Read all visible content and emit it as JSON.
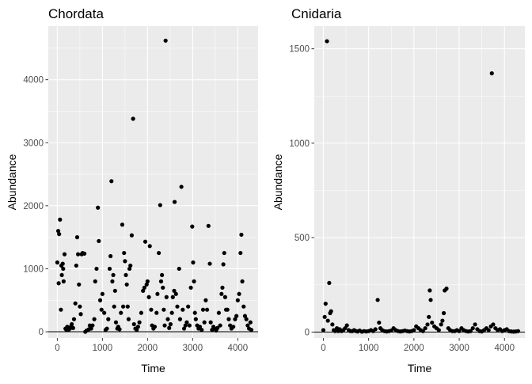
{
  "chart_data": [
    {
      "type": "scatter",
      "title": "Chordata",
      "xlabel": "Time",
      "ylabel": "Abundance",
      "xlim": [
        -200,
        4450
      ],
      "ylim": [
        -100,
        4850
      ],
      "xticks": [
        0,
        1000,
        2000,
        3000,
        4000
      ],
      "yticks": [
        0,
        1000,
        2000,
        3000,
        4000
      ],
      "xtick_labels": [
        "0",
        "1000",
        "2000",
        "3000",
        "4000"
      ],
      "ytick_labels": [
        "0",
        "1000",
        "2000",
        "3000",
        "4000"
      ],
      "hline": 0,
      "grid": true,
      "colors": {
        "panel": "#ebebeb",
        "grid": "#ffffff",
        "point": "#000000"
      },
      "points": [
        [
          0,
          1100
        ],
        [
          20,
          1600
        ],
        [
          30,
          770
        ],
        [
          40,
          1550
        ],
        [
          60,
          1780
        ],
        [
          80,
          350
        ],
        [
          90,
          1050
        ],
        [
          100,
          900
        ],
        [
          120,
          1080
        ],
        [
          130,
          1000
        ],
        [
          140,
          800
        ],
        [
          160,
          1230
        ],
        [
          180,
          50
        ],
        [
          200,
          30
        ],
        [
          220,
          80
        ],
        [
          250,
          30
        ],
        [
          280,
          50
        ],
        [
          300,
          80
        ],
        [
          320,
          120
        ],
        [
          350,
          60
        ],
        [
          370,
          200
        ],
        [
          400,
          450
        ],
        [
          420,
          1050
        ],
        [
          440,
          1500
        ],
        [
          460,
          1230
        ],
        [
          480,
          750
        ],
        [
          500,
          400
        ],
        [
          520,
          280
        ],
        [
          540,
          1230
        ],
        [
          560,
          1250
        ],
        [
          600,
          1240
        ],
        [
          620,
          0
        ],
        [
          650,
          20
        ],
        [
          700,
          40
        ],
        [
          720,
          100
        ],
        [
          750,
          50
        ],
        [
          780,
          100
        ],
        [
          820,
          200
        ],
        [
          840,
          800
        ],
        [
          870,
          1000
        ],
        [
          900,
          1970
        ],
        [
          920,
          1440
        ],
        [
          950,
          500
        ],
        [
          980,
          350
        ],
        [
          1000,
          600
        ],
        [
          1040,
          300
        ],
        [
          1070,
          30
        ],
        [
          1100,
          50
        ],
        [
          1130,
          200
        ],
        [
          1160,
          1000
        ],
        [
          1180,
          1200
        ],
        [
          1200,
          2390
        ],
        [
          1220,
          800
        ],
        [
          1240,
          900
        ],
        [
          1260,
          400
        ],
        [
          1280,
          650
        ],
        [
          1300,
          150
        ],
        [
          1330,
          50
        ],
        [
          1350,
          80
        ],
        [
          1380,
          40
        ],
        [
          1410,
          300
        ],
        [
          1440,
          1700
        ],
        [
          1460,
          400
        ],
        [
          1480,
          1250
        ],
        [
          1500,
          1120
        ],
        [
          1520,
          900
        ],
        [
          1540,
          750
        ],
        [
          1560,
          400
        ],
        [
          1580,
          200
        ],
        [
          1600,
          1000
        ],
        [
          1620,
          1050
        ],
        [
          1650,
          1530
        ],
        [
          1680,
          3380
        ],
        [
          1700,
          120
        ],
        [
          1730,
          50
        ],
        [
          1760,
          30
        ],
        [
          1790,
          80
        ],
        [
          1820,
          150
        ],
        [
          1860,
          300
        ],
        [
          1900,
          650
        ],
        [
          1930,
          700
        ],
        [
          1950,
          1430
        ],
        [
          1980,
          750
        ],
        [
          2000,
          800
        ],
        [
          2030,
          550
        ],
        [
          2050,
          1360
        ],
        [
          2080,
          350
        ],
        [
          2100,
          100
        ],
        [
          2130,
          50
        ],
        [
          2160,
          80
        ],
        [
          2200,
          300
        ],
        [
          2220,
          600
        ],
        [
          2250,
          1250
        ],
        [
          2280,
          2010
        ],
        [
          2300,
          800
        ],
        [
          2320,
          900
        ],
        [
          2340,
          700
        ],
        [
          2360,
          350
        ],
        [
          2380,
          100
        ],
        [
          2400,
          4620
        ],
        [
          2420,
          550
        ],
        [
          2450,
          200
        ],
        [
          2480,
          60
        ],
        [
          2510,
          120
        ],
        [
          2540,
          300
        ],
        [
          2560,
          550
        ],
        [
          2590,
          650
        ],
        [
          2600,
          2060
        ],
        [
          2630,
          600
        ],
        [
          2660,
          400
        ],
        [
          2700,
          1000
        ],
        [
          2720,
          200
        ],
        [
          2750,
          2300
        ],
        [
          2780,
          350
        ],
        [
          2810,
          50
        ],
        [
          2840,
          100
        ],
        [
          2870,
          150
        ],
        [
          2900,
          400
        ],
        [
          2930,
          100
        ],
        [
          2960,
          700
        ],
        [
          2990,
          1670
        ],
        [
          3010,
          1100
        ],
        [
          3030,
          800
        ],
        [
          3050,
          300
        ],
        [
          3070,
          200
        ],
        [
          3100,
          100
        ],
        [
          3130,
          50
        ],
        [
          3160,
          80
        ],
        [
          3200,
          30
        ],
        [
          3230,
          350
        ],
        [
          3260,
          150
        ],
        [
          3290,
          500
        ],
        [
          3320,
          350
        ],
        [
          3350,
          1680
        ],
        [
          3380,
          1080
        ],
        [
          3400,
          150
        ],
        [
          3430,
          30
        ],
        [
          3460,
          80
        ],
        [
          3490,
          50
        ],
        [
          3520,
          20
        ],
        [
          3550,
          60
        ],
        [
          3580,
          300
        ],
        [
          3610,
          100
        ],
        [
          3640,
          600
        ],
        [
          3660,
          700
        ],
        [
          3680,
          1070
        ],
        [
          3700,
          1250
        ],
        [
          3720,
          550
        ],
        [
          3740,
          350
        ],
        [
          3770,
          350
        ],
        [
          3800,
          200
        ],
        [
          3830,
          100
        ],
        [
          3860,
          50
        ],
        [
          3900,
          80
        ],
        [
          3940,
          200
        ],
        [
          3970,
          250
        ],
        [
          4000,
          500
        ],
        [
          4030,
          600
        ],
        [
          4060,
          1250
        ],
        [
          4080,
          1540
        ],
        [
          4100,
          800
        ],
        [
          4130,
          400
        ],
        [
          4160,
          250
        ],
        [
          4190,
          200
        ],
        [
          4220,
          100
        ],
        [
          4250,
          50
        ],
        [
          4280,
          150
        ],
        [
          4300,
          30
        ]
      ]
    },
    {
      "type": "scatter",
      "title": "Cnidaria",
      "xlabel": "Time",
      "ylabel": "Abundance",
      "xlim": [
        -200,
        4450
      ],
      "ylim": [
        -32,
        1620
      ],
      "xticks": [
        0,
        1000,
        2000,
        3000,
        4000
      ],
      "yticks": [
        0,
        500,
        1000,
        1500
      ],
      "xtick_labels": [
        "0",
        "1000",
        "2000",
        "3000",
        "4000"
      ],
      "ytick_labels": [
        "0",
        "500",
        "1000",
        "1500"
      ],
      "hline": 0,
      "grid": true,
      "colors": {
        "panel": "#ebebeb",
        "grid": "#ffffff",
        "point": "#000000"
      },
      "points": [
        [
          0,
          10
        ],
        [
          30,
          80
        ],
        [
          50,
          150
        ],
        [
          80,
          1540
        ],
        [
          100,
          60
        ],
        [
          130,
          260
        ],
        [
          150,
          100
        ],
        [
          170,
          110
        ],
        [
          200,
          40
        ],
        [
          230,
          10
        ],
        [
          260,
          5
        ],
        [
          300,
          20
        ],
        [
          330,
          5
        ],
        [
          360,
          15
        ],
        [
          400,
          5
        ],
        [
          440,
          10
        ],
        [
          480,
          20
        ],
        [
          520,
          35
        ],
        [
          560,
          10
        ],
        [
          600,
          5
        ],
        [
          640,
          5
        ],
        [
          680,
          10
        ],
        [
          720,
          5
        ],
        [
          760,
          3
        ],
        [
          800,
          8
        ],
        [
          850,
          2
        ],
        [
          900,
          5
        ],
        [
          950,
          3
        ],
        [
          1000,
          5
        ],
        [
          1050,
          10
        ],
        [
          1100,
          5
        ],
        [
          1150,
          15
        ],
        [
          1200,
          170
        ],
        [
          1230,
          50
        ],
        [
          1260,
          20
        ],
        [
          1300,
          10
        ],
        [
          1350,
          5
        ],
        [
          1400,
          3
        ],
        [
          1450,
          5
        ],
        [
          1500,
          8
        ],
        [
          1550,
          20
        ],
        [
          1600,
          10
        ],
        [
          1650,
          5
        ],
        [
          1700,
          3
        ],
        [
          1750,
          5
        ],
        [
          1800,
          8
        ],
        [
          1850,
          5
        ],
        [
          1900,
          3
        ],
        [
          1950,
          5
        ],
        [
          2000,
          10
        ],
        [
          2050,
          30
        ],
        [
          2100,
          20
        ],
        [
          2150,
          10
        ],
        [
          2200,
          5
        ],
        [
          2250,
          20
        ],
        [
          2300,
          40
        ],
        [
          2330,
          80
        ],
        [
          2350,
          220
        ],
        [
          2370,
          170
        ],
        [
          2400,
          50
        ],
        [
          2450,
          30
        ],
        [
          2500,
          20
        ],
        [
          2550,
          10
        ],
        [
          2600,
          40
        ],
        [
          2630,
          60
        ],
        [
          2660,
          100
        ],
        [
          2680,
          220
        ],
        [
          2720,
          230
        ],
        [
          2760,
          20
        ],
        [
          2800,
          10
        ],
        [
          2850,
          5
        ],
        [
          2900,
          5
        ],
        [
          2950,
          10
        ],
        [
          3000,
          5
        ],
        [
          3050,
          20
        ],
        [
          3100,
          10
        ],
        [
          3150,
          5
        ],
        [
          3200,
          3
        ],
        [
          3250,
          5
        ],
        [
          3300,
          20
        ],
        [
          3350,
          40
        ],
        [
          3400,
          15
        ],
        [
          3450,
          5
        ],
        [
          3500,
          3
        ],
        [
          3550,
          10
        ],
        [
          3600,
          20
        ],
        [
          3650,
          10
        ],
        [
          3700,
          30
        ],
        [
          3720,
          1370
        ],
        [
          3750,
          40
        ],
        [
          3800,
          20
        ],
        [
          3850,
          10
        ],
        [
          3900,
          15
        ],
        [
          3950,
          5
        ],
        [
          4000,
          10
        ],
        [
          4050,
          15
        ],
        [
          4100,
          5
        ],
        [
          4150,
          3
        ],
        [
          4200,
          2
        ],
        [
          4250,
          3
        ],
        [
          4300,
          5
        ]
      ]
    }
  ]
}
